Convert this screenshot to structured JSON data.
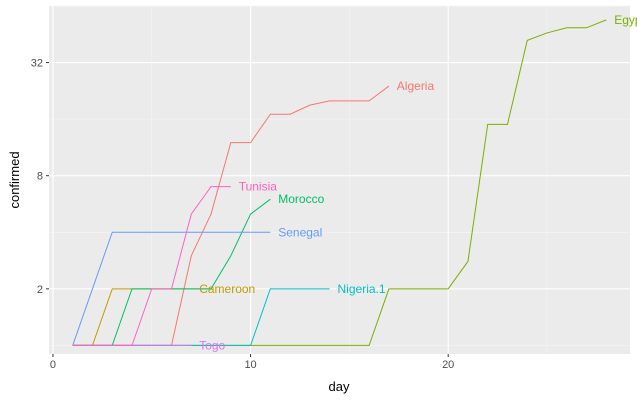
{
  "chart_data": {
    "type": "line",
    "title": "",
    "xlabel": "day",
    "ylabel": "confirmed",
    "x_ticks": [
      "0",
      "10",
      "20"
    ],
    "y_ticks": [
      "2",
      "8",
      "32"
    ],
    "xlim": [
      -0.2,
      29.2
    ],
    "ylim": [
      0.9,
      64
    ],
    "y_scale": "log2",
    "grid": true,
    "legend": "none (direct labels at line ends)",
    "series": [
      {
        "name": "Algeria",
        "color": "#F8766D",
        "x": [
          1,
          2,
          3,
          4,
          5,
          6,
          7,
          8,
          9,
          10,
          11,
          12,
          13,
          14,
          15,
          16,
          17
        ],
        "y": [
          1,
          1,
          1,
          1,
          1,
          1,
          3,
          5,
          12,
          12,
          17,
          17,
          19,
          20,
          20,
          20,
          24
        ],
        "label": "Algeria",
        "label_at": [
          17.4,
          24
        ]
      },
      {
        "name": "Cameroon",
        "color": "#C49A00",
        "x": [
          1,
          2,
          3,
          4,
          5,
          6,
          7,
          8
        ],
        "y": [
          1,
          1,
          2,
          2,
          2,
          2,
          2,
          2
        ],
        "label": "Cameroon",
        "label_at": [
          7.4,
          2
        ]
      },
      {
        "name": "Egypt",
        "color": "#7CAE00",
        "x": [
          1,
          2,
          3,
          4,
          5,
          6,
          7,
          8,
          9,
          10,
          11,
          12,
          13,
          14,
          15,
          16,
          17,
          18,
          19,
          20,
          21,
          22,
          23,
          24,
          25,
          26,
          27,
          28
        ],
        "y": [
          1,
          1,
          1,
          1,
          1,
          1,
          1,
          1,
          1,
          1,
          1,
          1,
          1,
          1,
          1,
          1,
          2,
          2,
          2,
          2,
          2.8,
          15,
          15,
          42,
          46,
          49,
          49,
          54
        ],
        "label": "Egypt",
        "label_at": [
          28.4,
          54
        ]
      },
      {
        "name": "Morocco",
        "color": "#00BE67",
        "x": [
          1,
          2,
          3,
          4,
          5,
          6,
          7,
          8,
          9,
          10,
          11
        ],
        "y": [
          1,
          1,
          1,
          2,
          2,
          2,
          2,
          2,
          3,
          5,
          6
        ],
        "label": "Morocco",
        "label_at": [
          11.4,
          6
        ]
      },
      {
        "name": "Nigeria.1",
        "color": "#00BFC4",
        "x": [
          1,
          2,
          3,
          4,
          5,
          6,
          7,
          8,
          9,
          10,
          11,
          12,
          13,
          14
        ],
        "y": [
          1,
          1,
          1,
          1,
          1,
          1,
          1,
          1,
          1,
          1,
          2,
          2,
          2,
          2
        ],
        "label": "Nigeria.1",
        "label_at": [
          14.4,
          2
        ]
      },
      {
        "name": "Senegal",
        "color": "#619CFF",
        "x": [
          1,
          2,
          3,
          4,
          5,
          6,
          7,
          8,
          9,
          10,
          11
        ],
        "y": [
          1,
          2,
          4,
          4,
          4,
          4,
          4,
          4,
          4,
          4,
          4
        ],
        "label": "Senegal",
        "label_at": [
          11.4,
          4
        ]
      },
      {
        "name": "Togo",
        "color": "#DB72FB",
        "x": [
          1,
          2,
          3,
          4,
          5,
          6,
          7
        ],
        "y": [
          1,
          1,
          1,
          1,
          1,
          1,
          1
        ],
        "label": "Togo",
        "label_at": [
          7.4,
          1
        ]
      },
      {
        "name": "Tunisia",
        "color": "#FF61C3",
        "x": [
          1,
          2,
          3,
          4,
          5,
          6,
          7,
          8,
          9
        ],
        "y": [
          1,
          1,
          1,
          1,
          2,
          2,
          5,
          7,
          7
        ],
        "label": "Tunisia",
        "label_at": [
          9.4,
          7
        ]
      }
    ]
  }
}
